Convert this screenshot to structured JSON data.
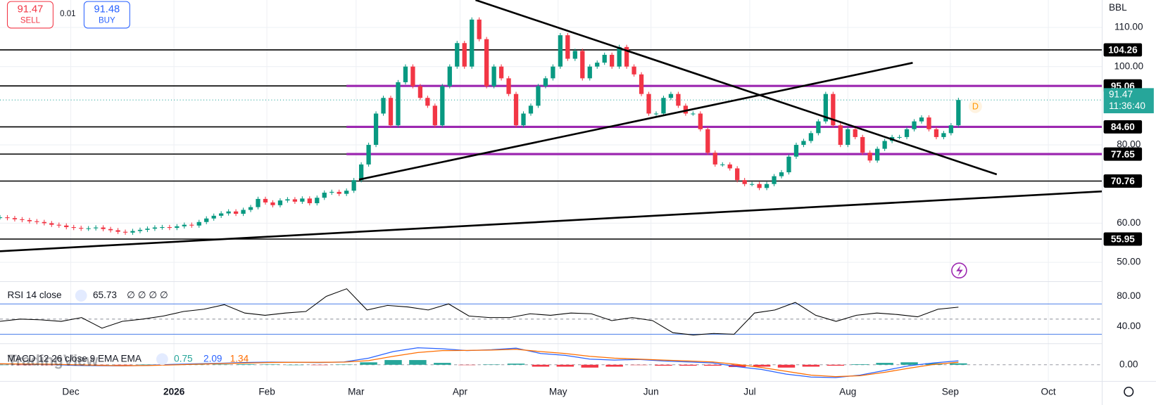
{
  "header": {
    "sell_price": "91.47",
    "sell_label": "SELL",
    "spread": "0.01",
    "buy_price": "91.48",
    "buy_label": "BUY",
    "symbol": "BBL"
  },
  "watermark": "TradingView",
  "chart_data": [
    {
      "type": "candlestick",
      "up_color": "#089981",
      "down_color": "#f23645",
      "marker": "D",
      "values": [
        61.5,
        61.3,
        61.0,
        60.8,
        60.5,
        60.3,
        60.0,
        59.6,
        59.4,
        59.0,
        58.8,
        58.6,
        58.7,
        58.9,
        58.5,
        58.2,
        57.8,
        57.6,
        58.0,
        58.3,
        58.6,
        58.9,
        59.0,
        58.8,
        59.2,
        59.6,
        59.4,
        60.3,
        61.2,
        61.9,
        62.5,
        63.0,
        62.4,
        63.4,
        64.1,
        66.2,
        65.3,
        64.6,
        65.8,
        66.1,
        65.5,
        66.3,
        65.1,
        66.5,
        67.8,
        68.0,
        67.5,
        68.3,
        71.0,
        75,
        80,
        88,
        92,
        85,
        96,
        100,
        95,
        92,
        90,
        85,
        95,
        100,
        106,
        100,
        112,
        107,
        95,
        100,
        97,
        93,
        85,
        88,
        90,
        95,
        97,
        100,
        108,
        102,
        104,
        97,
        100,
        101,
        103,
        100,
        105,
        100,
        98,
        93,
        88,
        88,
        92,
        93,
        90,
        88,
        88,
        84,
        78,
        75,
        75,
        74,
        71,
        70,
        70,
        69,
        70,
        72,
        73,
        77,
        80,
        81,
        83,
        86,
        93,
        85,
        80,
        84,
        82,
        78,
        76,
        79,
        81,
        82,
        82,
        84,
        86,
        87,
        84,
        82,
        83,
        85,
        91.47
      ],
      "ylim": [
        44.9,
        117.0
      ],
      "yticks": [
        {
          "value": 110,
          "label": "110.00"
        },
        {
          "value": 100,
          "label": "100.00"
        },
        {
          "value": 80,
          "label": "80.00"
        },
        {
          "value": 60,
          "label": "60.00"
        },
        {
          "value": 50,
          "label": "50.00"
        }
      ],
      "levels": [
        {
          "value": 104.26,
          "label": "104.26",
          "color": "#000000"
        },
        {
          "value": 95.06,
          "label": "95.06",
          "color": "#9c27b0"
        },
        {
          "value": 84.6,
          "label": "84.60",
          "color": "#9c27b0"
        },
        {
          "value": 77.65,
          "label": "77.65",
          "color": "#9c27b0"
        },
        {
          "value": 70.76,
          "label": "70.76",
          "color": "#000000"
        },
        {
          "value": 55.95,
          "label": "55.95",
          "color": "#000000"
        }
      ],
      "last_price": {
        "value": 91.47,
        "label": "91.47",
        "countdown": "11:36:40",
        "color": "#26a69a"
      },
      "x_labels": [
        "Dec",
        "2026",
        "Feb",
        "Mar",
        "Apr",
        "May",
        "Jun",
        "Jul",
        "Aug",
        "Sep",
        "Oct"
      ]
    },
    {
      "type": "line",
      "title": "RSI 14 close",
      "value_label": "65.73",
      "placeholders": "∅ ∅ ∅ ∅",
      "color": "#000000",
      "band_color": "#4a7ee8",
      "values": [
        47,
        50,
        49,
        47,
        52,
        38,
        47,
        50,
        54,
        60,
        63,
        69,
        58,
        55,
        58,
        60,
        80,
        90,
        62,
        68,
        66,
        62,
        70,
        54,
        52,
        52,
        57,
        55,
        58,
        57,
        48,
        52,
        48,
        32,
        29,
        31,
        30,
        58,
        62,
        72,
        55,
        47,
        55,
        58,
        56,
        53,
        63,
        65.73
      ],
      "ylim": [
        20.5,
        98.5
      ],
      "yticks": [
        {
          "value": 80,
          "label": "80.00"
        },
        {
          "value": 40,
          "label": "40.00"
        }
      ],
      "levels": [
        70,
        50,
        30
      ]
    },
    {
      "type": "macd",
      "title": "MACD 12 26 close 9 EMA EMA",
      "histogram": {
        "color_up": "#26a69a",
        "color_down": "#f23645",
        "values": [
          0,
          -0.1,
          -0.1,
          -0.3,
          -0.2,
          -0.1,
          0.1,
          0.3,
          0.2,
          0.2,
          0.3,
          0.2,
          0,
          -0.1,
          0.1,
          1.3,
          2.5,
          2.5,
          1,
          -0.1,
          0.2,
          0.6,
          -1,
          -1,
          -1.5,
          -1,
          -0.2,
          -0.5,
          -0.5,
          -0.5,
          -1.2,
          -1,
          -1.5,
          -1,
          -0.5,
          0.3,
          1,
          1.3,
          0.8,
          0.75
        ],
        "value_label": "0.75"
      },
      "macd": {
        "color": "#2962ff",
        "values": [
          0.5,
          0.3,
          0.2,
          -0.3,
          -0.5,
          -0.6,
          -0.3,
          0.2,
          0.5,
          0.8,
          1.2,
          1.4,
          1.3,
          1.2,
          1.5,
          3.5,
          7,
          9,
          8.5,
          7.5,
          8,
          8.8,
          6,
          5,
          3,
          2.5,
          2.8,
          2,
          1.5,
          1,
          -1,
          -2.5,
          -5,
          -6.5,
          -6.8,
          -5.5,
          -3,
          -0.5,
          1,
          2.09
        ],
        "value_label": "2.09"
      },
      "signal": {
        "color": "#ff6d00",
        "values": [
          0.5,
          0.4,
          0.3,
          0,
          -0.3,
          -0.5,
          -0.4,
          -0.1,
          0.3,
          0.6,
          0.9,
          1.2,
          1.3,
          1.3,
          1.4,
          2.2,
          4.5,
          6.5,
          7.5,
          7.6,
          7.8,
          8.2,
          7,
          6,
          4.5,
          3.5,
          3,
          2.5,
          2,
          1.5,
          0.2,
          -1.5,
          -3.5,
          -5.5,
          -6.3,
          -5.8,
          -4,
          -1.8,
          0.2,
          1.34
        ],
        "value_label": "1.34"
      },
      "ylim": [
        -8.8,
        11.2
      ],
      "yticks": [
        {
          "value": 0,
          "label": "0.00"
        }
      ]
    }
  ]
}
